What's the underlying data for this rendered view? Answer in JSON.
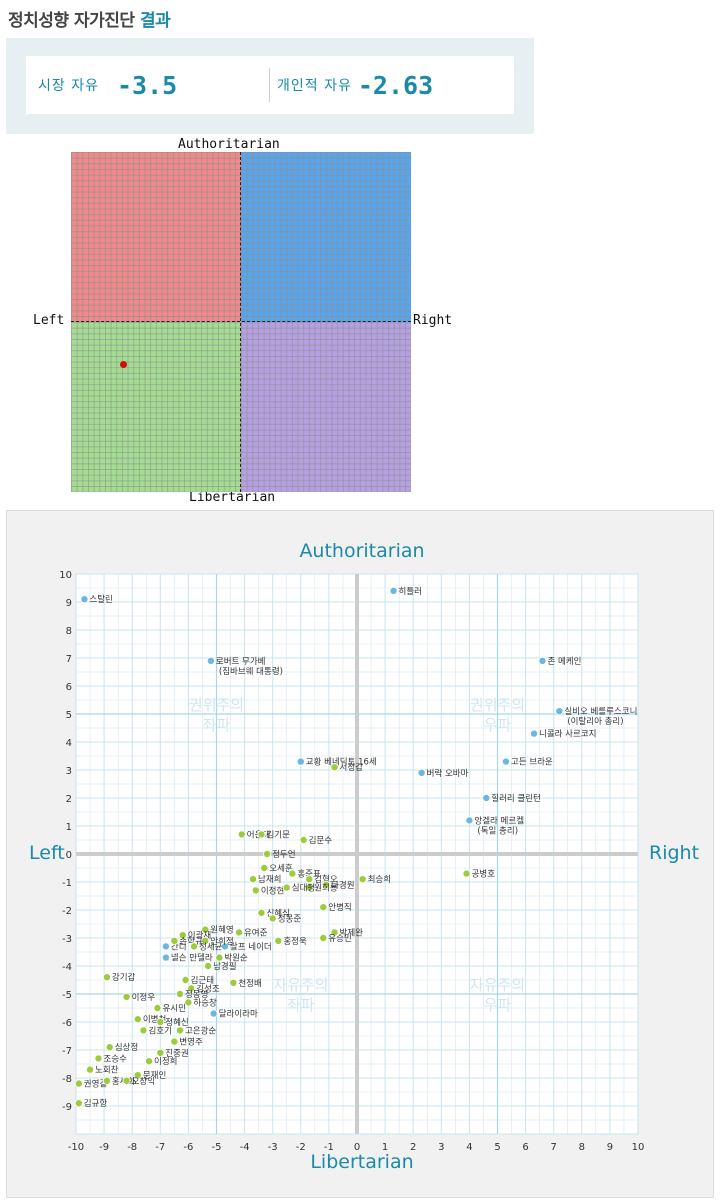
{
  "page_title": {
    "main": "정치성향 자가진단",
    "accent": "결과"
  },
  "scores": {
    "market_label": "시장 자유",
    "market_value": "-3.5",
    "personal_label": "개인적 자유",
    "personal_value": "-2.63"
  },
  "compass": {
    "top": "Authoritarian",
    "bottom": "Libertarian",
    "left": "Left",
    "right": "Right",
    "colors": {
      "auth_left": "#ee8a8a",
      "auth_right": "#5aa4ea",
      "lib_left": "#a4dc92",
      "lib_right": "#b5a0e2",
      "user_dot": "#d01010"
    },
    "user_point": {
      "x": -6.9,
      "y": -2.5
    }
  },
  "chart_data": {
    "type": "scatter",
    "title": "Authoritarian",
    "xlabel": "Libertarian",
    "left_label": "Left",
    "right_label": "Right",
    "xlim": [
      -10,
      10
    ],
    "ylim": [
      -10,
      10
    ],
    "x_ticks": [
      "-10",
      "-9",
      "-8",
      "-7",
      "-6",
      "-5",
      "-4",
      "-3",
      "-2",
      "-1",
      "0",
      "1",
      "2",
      "3",
      "4",
      "5",
      "6",
      "7",
      "8",
      "9",
      "10"
    ],
    "y_ticks": [
      "10",
      "9",
      "8",
      "7",
      "6",
      "5",
      "4",
      "3",
      "2",
      "1",
      "0",
      "-1",
      "-2",
      "-3",
      "-4",
      "-5",
      "-6",
      "-7",
      "-8",
      "-9"
    ],
    "grid": true,
    "quadrant_labels": [
      {
        "line1": "권위주의",
        "line2": "좌파",
        "x": -5,
        "y": 5
      },
      {
        "line1": "권위주의",
        "line2": "우파",
        "x": 5,
        "y": 5
      },
      {
        "line1": "자유주의",
        "line2": "좌파",
        "x": -2,
        "y": -5
      },
      {
        "line1": "자유주의",
        "line2": "우파",
        "x": 5,
        "y": -5
      }
    ],
    "colors": {
      "foreign": "#6cb6e2",
      "korean": "#9ccc3c",
      "grid": "#c9e4f0",
      "axis": "#cccccc",
      "quadrant_text": "#cfe6f2",
      "tick_text": "#333333",
      "title_text": "#1a8aa8"
    },
    "foreign_points": [
      {
        "name": "스탈린",
        "x": -9.7,
        "y": 9.1
      },
      {
        "name": "히틀러",
        "x": 1.3,
        "y": 9.4
      },
      {
        "name": "로버트 무가베",
        "name2": "(짐바브웨 대통령)",
        "x": -5.2,
        "y": 6.9
      },
      {
        "name": "존 메케인",
        "x": 6.6,
        "y": 6.9
      },
      {
        "name": "실비오 베를루스코니",
        "name2": "(이탈리아 총리)",
        "x": 7.2,
        "y": 5.1
      },
      {
        "name": "니콜라 사르코지",
        "x": 6.3,
        "y": 4.3
      },
      {
        "name": "교황 베네딕토 16세",
        "x": -2.0,
        "y": 3.3
      },
      {
        "name": "버락 오바마",
        "x": 2.3,
        "y": 2.9
      },
      {
        "name": "고든 브라운",
        "x": 5.3,
        "y": 3.3
      },
      {
        "name": "힐러리 클린턴",
        "x": 4.6,
        "y": 2.0
      },
      {
        "name": "앙겔라 메르켈",
        "name2": "(독일 총리)",
        "x": 4.0,
        "y": 1.2
      },
      {
        "name": "간디",
        "x": -6.8,
        "y": -3.3
      },
      {
        "name": "넬슨 만델라",
        "x": -6.8,
        "y": -3.7
      },
      {
        "name": "달라이라마",
        "x": -5.1,
        "y": -5.7
      },
      {
        "name": "랄프 네이더",
        "x": -4.7,
        "y": -3.3
      }
    ],
    "korean_points": [
      {
        "name": "서정갑",
        "x": -0.8,
        "y": 3.1
      },
      {
        "name": "어운대",
        "x": -4.1,
        "y": 0.7
      },
      {
        "name": "김기문",
        "x": -3.4,
        "y": 0.7
      },
      {
        "name": "김문수",
        "x": -1.9,
        "y": 0.5
      },
      {
        "name": "정두언",
        "x": -3.2,
        "y": 0.0
      },
      {
        "name": "오세훈",
        "x": -3.3,
        "y": -0.5
      },
      {
        "name": "홍준표",
        "x": -2.3,
        "y": -0.7
      },
      {
        "name": "남재희",
        "x": -3.7,
        "y": -0.9
      },
      {
        "name": "김형오",
        "x": -1.7,
        "y": -0.9
      },
      {
        "name": "나경원",
        "x": -1.1,
        "y": -1.1
      },
      {
        "name": "원희룡",
        "x": -1.7,
        "y": -1.2
      },
      {
        "name": "최승희",
        "x": 0.2,
        "y": -0.9
      },
      {
        "name": "공병호",
        "x": 3.9,
        "y": -0.7
      },
      {
        "name": "이정현",
        "x": -3.6,
        "y": -1.3
      },
      {
        "name": "심대평",
        "x": -2.5,
        "y": -1.2
      },
      {
        "name": "안병직",
        "x": -1.2,
        "y": -1.9
      },
      {
        "name": "신혜식",
        "x": -3.4,
        "y": -2.1
      },
      {
        "name": "정몽준",
        "x": -3.0,
        "y": -2.3
      },
      {
        "name": "박제완",
        "x": -0.8,
        "y": -2.8
      },
      {
        "name": "원혜영",
        "x": -5.4,
        "y": -2.7
      },
      {
        "name": "이광재",
        "x": -6.2,
        "y": -2.9
      },
      {
        "name": "유여준",
        "x": -4.2,
        "y": -2.8
      },
      {
        "name": "안희정",
        "x": -5.4,
        "y": -3.1
      },
      {
        "name": "손학규",
        "x": -6.5,
        "y": -3.1
      },
      {
        "name": "홍정욱",
        "x": -2.8,
        "y": -3.1
      },
      {
        "name": "유승민",
        "x": -1.2,
        "y": -3.0
      },
      {
        "name": "정세균",
        "x": -5.8,
        "y": -3.3
      },
      {
        "name": "박원순",
        "x": -4.9,
        "y": -3.7
      },
      {
        "name": "남경필",
        "x": -5.3,
        "y": -4.0
      },
      {
        "name": "강기갑",
        "x": -8.9,
        "y": -4.4
      },
      {
        "name": "김근태",
        "x": -6.1,
        "y": -4.5
      },
      {
        "name": "천정배",
        "x": -4.4,
        "y": -4.6
      },
      {
        "name": "김성조",
        "x": -5.9,
        "y": -4.8
      },
      {
        "name": "이정우",
        "x": -8.2,
        "y": -5.1
      },
      {
        "name": "정동영",
        "x": -6.3,
        "y": -5.0
      },
      {
        "name": "하승창",
        "x": -6.0,
        "y": -5.3
      },
      {
        "name": "유시민",
        "x": -7.1,
        "y": -5.5
      },
      {
        "name": "이병천",
        "x": -7.8,
        "y": -5.9
      },
      {
        "name": "정혜신",
        "x": -7.0,
        "y": -6.0
      },
      {
        "name": "김호기",
        "x": -7.6,
        "y": -6.3
      },
      {
        "name": "고은광순",
        "x": -6.3,
        "y": -6.3
      },
      {
        "name": "변영주",
        "x": -6.5,
        "y": -6.7
      },
      {
        "name": "심상정",
        "x": -8.8,
        "y": -6.9
      },
      {
        "name": "진중권",
        "x": -7.0,
        "y": -7.1
      },
      {
        "name": "조승수",
        "x": -9.2,
        "y": -7.3
      },
      {
        "name": "이정희",
        "x": -7.4,
        "y": -7.4
      },
      {
        "name": "노회찬",
        "x": -9.5,
        "y": -7.7
      },
      {
        "name": "문재인",
        "x": -7.8,
        "y": -7.9
      },
      {
        "name": "권영길",
        "x": -9.9,
        "y": -8.2
      },
      {
        "name": "홍세화",
        "x": -8.9,
        "y": -8.1
      },
      {
        "name": "오창익",
        "x": -8.2,
        "y": -8.1
      },
      {
        "name": "김규항",
        "x": -9.9,
        "y": -8.9
      }
    ]
  }
}
